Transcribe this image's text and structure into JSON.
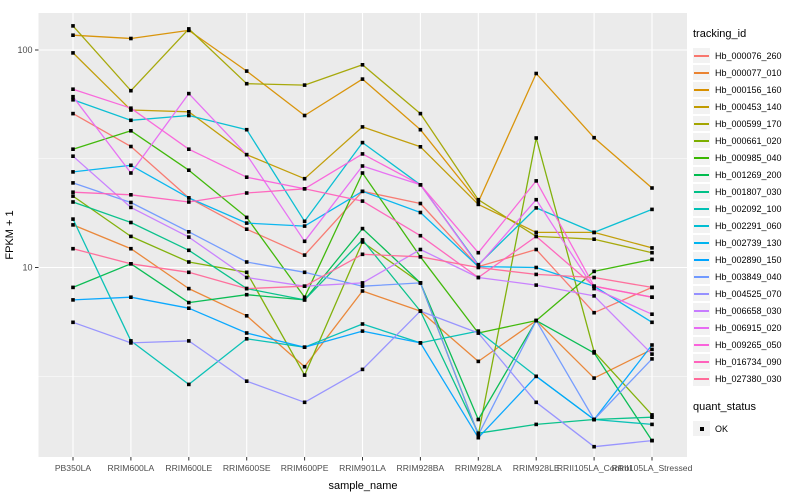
{
  "chart_data": {
    "type": "line",
    "title": "",
    "xlabel": "sample_name",
    "ylabel": "FPKM + 1",
    "y_scale": "log10",
    "ylim": [
      1.4,
      146
    ],
    "y_ticks": [
      10,
      100
    ],
    "y_minor_gridlines": [
      3.162,
      31.62
    ],
    "grid": true,
    "legend_position": "right",
    "legend_title": "tracking_id",
    "quant_legend": {
      "title": "quant_status",
      "label": "OK",
      "marker": "filled-black-square"
    },
    "point_shape": "filled-black-square",
    "panel_background": "#EBEBEB",
    "gridline_color": "#FFFFFF",
    "tick_label_color": "#4D4D4D",
    "categories": [
      "PB350LA",
      "RRIM600LA",
      "RRIM600LE",
      "RRIM600SE",
      "RRIM600PE",
      "RRIM901LA",
      "RRIM928BA",
      "RRIM928LA",
      "RRIM928LE",
      "RRII105LA_Control",
      "RRII105LA_Stressed"
    ],
    "series": [
      {
        "name": "Hb_000076_260",
        "color": "#F8766D",
        "values": [
          51,
          36,
          20.9,
          15,
          11.4,
          22.4,
          19.7,
          10.1,
          12.1,
          6.2,
          8.1
        ]
      },
      {
        "name": "Hb_000077_010",
        "color": "#EA8331",
        "values": [
          15.7,
          12.2,
          8.0,
          6.0,
          3.5,
          7.8,
          6.3,
          3.7,
          5.7,
          3.1,
          4.2
        ]
      },
      {
        "name": "Hb_000156_160",
        "color": "#D89000",
        "values": [
          117,
          113,
          123,
          80,
          50,
          73.5,
          43,
          20,
          78,
          39.5,
          23.2
        ]
      },
      {
        "name": "Hb_000453_140",
        "color": "#C09B00",
        "values": [
          97,
          53,
          52,
          33,
          25.6,
          44.3,
          35.9,
          19.5,
          14.5,
          14.5,
          12.3
        ]
      },
      {
        "name": "Hb_000599_170",
        "color": "#A3A500",
        "values": [
          129,
          65,
          125,
          70,
          69,
          85.5,
          51,
          20.5,
          13.9,
          13.5,
          11.7
        ]
      },
      {
        "name": "Hb_000661_020",
        "color": "#7CAE00",
        "values": [
          21.3,
          13.9,
          10.6,
          9.5,
          3.2,
          13.1,
          8.5,
          1.7,
          39.4,
          4.1,
          2.1
        ]
      },
      {
        "name": "Hb_000985_040",
        "color": "#39B600",
        "values": [
          35,
          42.5,
          28,
          17,
          7.3,
          27.2,
          11.2,
          5.0,
          5.7,
          9.6,
          10.9
        ]
      },
      {
        "name": "Hb_001269_200",
        "color": "#00BB4E",
        "values": [
          8.1,
          10.4,
          6.9,
          7.5,
          7.1,
          15.1,
          8.5,
          2.0,
          5.7,
          4.05,
          1.6
        ]
      },
      {
        "name": "Hb_001807_030",
        "color": "#00C087",
        "values": [
          20,
          16.1,
          12,
          8.0,
          7.1,
          13.4,
          6.3,
          1.73,
          1.9,
          2.0,
          2.05
        ]
      },
      {
        "name": "Hb_002092_100",
        "color": "#00C0B4",
        "values": [
          16.7,
          4.6,
          2.9,
          4.7,
          4.3,
          5.5,
          4.5,
          5.1,
          3.16,
          2.0,
          1.9
        ]
      },
      {
        "name": "Hb_002291_060",
        "color": "#00BDD2",
        "values": [
          59,
          47.5,
          50,
          43,
          16.3,
          37.5,
          24,
          10.3,
          18.8,
          14.5,
          18.5
        ]
      },
      {
        "name": "Hb_002739_130",
        "color": "#00B4EF",
        "values": [
          27.5,
          29.5,
          20.9,
          16.0,
          15.5,
          22.4,
          17.9,
          10.1,
          10.0,
          8.2,
          5.6
        ]
      },
      {
        "name": "Hb_002890_150",
        "color": "#00A5FF",
        "values": [
          7.1,
          7.3,
          6.5,
          5.0,
          4.3,
          5.1,
          4.5,
          1.65,
          3.16,
          2.0,
          4.4
        ]
      },
      {
        "name": "Hb_003849_040",
        "color": "#7099FF",
        "values": [
          24.5,
          19.9,
          14.6,
          10.6,
          9.5,
          8.2,
          8.5,
          1.7,
          5.7,
          2.0,
          3.8
        ]
      },
      {
        "name": "Hb_004525_070",
        "color": "#9590FF",
        "values": [
          5.6,
          4.5,
          4.6,
          3.0,
          2.4,
          3.4,
          6.3,
          5.0,
          2.4,
          1.5,
          1.6
        ]
      },
      {
        "name": "Hb_006658_030",
        "color": "#C77CFF",
        "values": [
          32.5,
          18.9,
          13.8,
          9.0,
          8.2,
          8.5,
          12.1,
          9.0,
          8.3,
          7.4,
          4.0
        ]
      },
      {
        "name": "Hb_006915_020",
        "color": "#E76BF3",
        "values": [
          61,
          27.2,
          63,
          33,
          13.2,
          29.3,
          24,
          10.2,
          20.5,
          8.0,
          6.1
        ]
      },
      {
        "name": "Hb_009265_050",
        "color": "#FA62DB",
        "values": [
          66,
          54,
          35,
          26,
          23,
          33.3,
          24,
          11.7,
          25,
          8.2,
          7.3
        ]
      },
      {
        "name": "Hb_016734_090",
        "color": "#FF62BC",
        "values": [
          22.2,
          21.6,
          20.0,
          22.0,
          23.0,
          20.2,
          14.0,
          9.0,
          13.9,
          8.2,
          7.3
        ]
      },
      {
        "name": "Hb_027380_030",
        "color": "#FF6A99",
        "values": [
          12.2,
          10.4,
          9.5,
          8.0,
          8.2,
          11.5,
          11.2,
          10.0,
          9.3,
          9.0,
          8.1
        ]
      }
    ]
  }
}
